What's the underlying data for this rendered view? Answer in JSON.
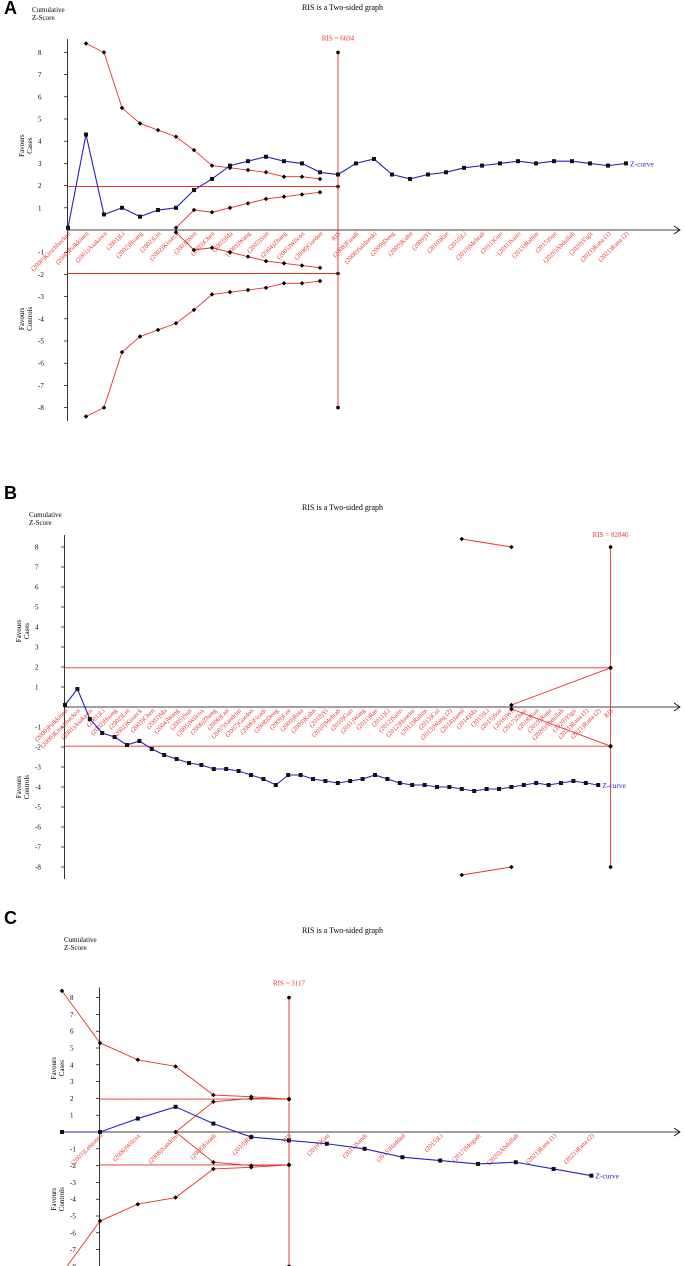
{
  "chart_data": [
    {
      "type": "line",
      "panel_label": "A",
      "title": "RIS is a Two-sided graph",
      "ylabel_line1": "Cumulative",
      "ylabel_line2": "Z-Score",
      "favours_upper": [
        "Favours",
        "Cases"
      ],
      "favours_lower": [
        "Favours",
        "Controls"
      ],
      "yticks": [
        8,
        7,
        6,
        5,
        4,
        3,
        2,
        1,
        -1,
        -2,
        -3,
        -4,
        -5,
        -6,
        -7,
        -8
      ],
      "ylim": [
        -8,
        8
      ],
      "ris_label": "RIS = 6694",
      "ris_label_id": "ris-label",
      "categories": [
        "(2000)Kirschbacken",
        "(2000)Pulkkinen",
        "(2001)Asakawa",
        "(2001)Li",
        "(2002)Huang",
        "(2002)Lin",
        "(2002)Kisseck",
        "(2003)Wen",
        "(2003)Chen",
        "(2003)Ma",
        "(2003)Wang",
        "(2003)Sun",
        "(2004)Zhang",
        "(2005)Wilcox",
        "(2008)Gordon",
        "RIS",
        "(2008)Fizadi",
        "(2008)Saldanski",
        "(2009)Deng",
        "(2009)Kuhn",
        "(2009)Yi",
        "(2010)Rae",
        "(2010)Li",
        "(2010)Mehrab",
        "(2011)Guo",
        "(2011)Saito",
        "(2013)Rahim",
        "(2015)Sue",
        "(2020)Abdullah",
        "(2020)Yigit",
        "(2021)Rana (1)",
        "(2021)Rana (2)"
      ],
      "x": [
        0,
        1,
        2,
        3,
        4,
        5,
        6,
        7,
        8,
        9,
        10,
        11,
        12,
        13,
        14,
        15,
        16,
        17,
        18,
        19,
        20,
        21,
        22,
        23,
        24,
        25,
        26,
        27,
        28,
        29,
        30,
        31
      ],
      "z_curve_x": [
        0,
        1,
        2,
        3,
        4,
        5,
        6,
        7,
        8,
        9,
        10,
        11,
        12,
        13,
        14,
        15,
        16,
        17,
        18,
        19,
        20,
        21,
        22,
        23,
        24,
        25,
        26,
        27,
        28,
        29,
        30,
        31
      ],
      "z_curve": [
        0.1,
        4.3,
        0.7,
        1.0,
        0.6,
        0.9,
        1.0,
        1.8,
        2.3,
        2.9,
        3.1,
        3.3,
        3.1,
        3.0,
        2.6,
        2.5,
        3.0,
        3.2,
        2.5,
        2.3,
        2.5,
        2.6,
        2.8,
        2.9,
        3.0,
        3.1,
        3.0,
        3.1,
        3.1,
        3.0,
        2.9,
        3.0
      ],
      "z_curve_label": "Z-curve",
      "boundary_x": [
        1,
        2,
        3,
        4,
        5,
        6,
        7,
        8,
        9,
        10,
        11,
        12,
        13,
        14
      ],
      "upper_boundary": [
        8.4,
        8.0,
        5.5,
        4.8,
        4.5,
        4.2,
        3.6,
        2.9,
        2.8,
        2.7,
        2.6,
        2.4,
        2.4,
        2.3
      ],
      "lower_boundary": [
        -8.4,
        -8.0,
        -5.5,
        -4.8,
        -4.5,
        -4.2,
        -3.6,
        -2.9,
        -2.8,
        -2.7,
        -2.6,
        -2.4,
        -2.4,
        -2.3
      ],
      "futility_x": [
        6,
        7,
        8,
        9,
        10,
        11,
        12,
        13,
        14
      ],
      "futility_upper": [
        0.1,
        0.9,
        0.8,
        1.0,
        1.2,
        1.4,
        1.5,
        1.6,
        1.7
      ],
      "futility_lower": [
        -0.1,
        -0.9,
        -0.8,
        -1.0,
        -1.2,
        -1.4,
        -1.5,
        -1.6,
        -1.7
      ],
      "ris_index": 15,
      "conventional_z": 1.96
    },
    {
      "type": "line",
      "panel_label": "B",
      "title": "RIS is a Two-sided graph",
      "ylabel_line1": "Cumulative",
      "ylabel_line2": "Z-Score",
      "favours_upper": [
        "Favours",
        "Cases"
      ],
      "favours_lower": [
        "Favours",
        "Controls"
      ],
      "yticks": [
        8,
        7,
        6,
        5,
        4,
        3,
        2,
        1,
        -1,
        -2,
        -3,
        -4,
        -5,
        -6,
        -7,
        -8
      ],
      "ylim": [
        -8,
        8
      ],
      "ris_label": "RIS = 82846",
      "categories": [
        "(2000)Pulkkinen",
        "(2000)Kirschbacken",
        "(2001)Asakawa",
        "(2001)Li",
        "(2002)Huang",
        "(2002)Lin",
        "(2002)Kisseck",
        "(2003)Chen",
        "(2003)Ma",
        "(2004)Wang",
        "(2005)Sun",
        "(2005)Wilcox",
        "(2006)Zhang",
        "(2006)Lan",
        "(2007)Sandrini",
        "(2007)Gordon",
        "(2008)Fizadi",
        "(2008)Deng",
        "(2009)Lee",
        "(2009)Rota",
        "(2009)Kuhn",
        "(2010)Yi",
        "(2010)Mehrab",
        "(2010)Guo",
        "(2011)Wang",
        "(2011)Rae",
        "(2011)Li",
        "(2012)Saito",
        "(2012)Hoseini",
        "(2013)Rahim",
        "(2013)Cui",
        "(2013)Wang (2)",
        "(2014)Jamil",
        "(2014)Ma",
        "(2015)Li",
        "(2015)Sue",
        "(2016)Wu",
        "(2017)Zhou",
        "(2018)Sun",
        "(2019)Rana",
        "(2020)Abdullah",
        "(2020)Yigit",
        "(2021)Rana (1)",
        "(2021)Rana (2)",
        "RIS"
      ],
      "x": [
        0,
        1,
        2,
        3,
        4,
        5,
        6,
        7,
        8,
        9,
        10,
        11,
        12,
        13,
        14,
        15,
        16,
        17,
        18,
        19,
        20,
        21,
        22,
        23,
        24,
        25,
        26,
        27,
        28,
        29,
        30,
        31,
        32,
        33,
        34,
        35,
        36,
        37,
        38,
        39,
        40,
        41,
        42,
        43,
        44
      ],
      "z_curve_x": [
        0,
        1,
        2,
        3,
        4,
        5,
        6,
        7,
        8,
        9,
        10,
        11,
        12,
        13,
        14,
        15,
        16,
        17,
        18,
        19,
        20,
        21,
        22,
        23,
        24,
        25,
        26,
        27,
        28,
        29,
        30,
        31,
        32,
        33,
        34,
        35,
        36,
        37,
        38,
        39,
        40,
        41,
        42,
        43
      ],
      "z_curve": [
        0.1,
        0.9,
        -0.6,
        -1.3,
        -1.5,
        -1.9,
        -1.7,
        -2.1,
        -2.4,
        -2.6,
        -2.8,
        -2.9,
        -3.1,
        -3.1,
        -3.2,
        -3.4,
        -3.6,
        -3.9,
        -3.4,
        -3.4,
        -3.6,
        -3.7,
        -3.8,
        -3.7,
        -3.6,
        -3.4,
        -3.6,
        -3.8,
        -3.9,
        -3.9,
        -4.0,
        -4.0,
        -4.1,
        -4.2,
        -4.1,
        -4.1,
        -4.0,
        -3.9,
        -3.8,
        -3.9,
        -3.8,
        -3.7,
        -3.8,
        -3.9
      ],
      "z_curve_label": "Z-curve",
      "boundary_x": [
        32,
        36
      ],
      "upper_boundary": [
        8.4,
        8.0
      ],
      "lower_boundary": [
        -8.4,
        -8.0
      ],
      "futility_x": [
        36,
        44
      ],
      "futility_upper": [
        0.1,
        1.96
      ],
      "futility_lower": [
        -0.1,
        -1.96
      ],
      "ris_index": 44,
      "conventional_z": 1.96
    },
    {
      "type": "line",
      "panel_label": "C",
      "title": "RIS is a Two-sided graph",
      "ylabel_line1": "Cumulative",
      "ylabel_line2": "Z-Score",
      "favours_upper": [
        "Favours",
        "Cases"
      ],
      "favours_lower": [
        "Favours",
        "Controls"
      ],
      "yticks": [
        8,
        7,
        6,
        5,
        4,
        3,
        2,
        1,
        -1,
        -2,
        -3,
        -4,
        -5,
        -6,
        -7,
        -8
      ],
      "ylim": [
        -8,
        8
      ],
      "ris_label": "RIS = 3117",
      "categories": [
        "(2003)Lehtonen",
        "(2006)Wilcox",
        "(2008)Sandrini",
        "(2008)Fizadi",
        "(2010)Rae",
        "RIS",
        "(2010)Kim",
        "(2011)Sandi",
        "(2015)Haddad",
        "(2015)Li",
        "(2017)Mogadi",
        "(2020)Abdullah",
        "(2021)Rana (1)",
        "(2021)Rana (2)"
      ],
      "x": [
        0,
        1,
        2,
        3,
        4,
        5,
        6,
        7,
        8,
        9,
        10,
        11,
        12,
        13
      ],
      "z_curve_x": [
        -1,
        0,
        1,
        2,
        3,
        4,
        5,
        6,
        7,
        8,
        9,
        10,
        11,
        12,
        13
      ],
      "z_curve": [
        0.0,
        0.0,
        0.8,
        1.5,
        0.5,
        -0.3,
        -0.5,
        -0.7,
        -1.0,
        -1.5,
        -1.7,
        -1.9,
        -1.8,
        -2.2,
        -2.6
      ],
      "z_curve_label": "Z-curve",
      "boundary_x": [
        -1,
        0,
        1,
        2,
        3,
        4,
        5
      ],
      "upper_boundary": [
        8.4,
        5.3,
        4.3,
        3.9,
        2.2,
        2.1,
        1.96
      ],
      "lower_boundary": [
        -8.4,
        -5.3,
        -4.3,
        -3.9,
        -2.2,
        -2.1,
        -1.96
      ],
      "futility_x": [
        2,
        3,
        4,
        5
      ],
      "futility_upper": [
        0.0,
        1.8,
        2.0,
        1.96
      ],
      "futility_lower": [
        0.0,
        -1.8,
        -2.0,
        -1.96
      ],
      "ris_index": 5,
      "conventional_z": 1.96
    }
  ]
}
